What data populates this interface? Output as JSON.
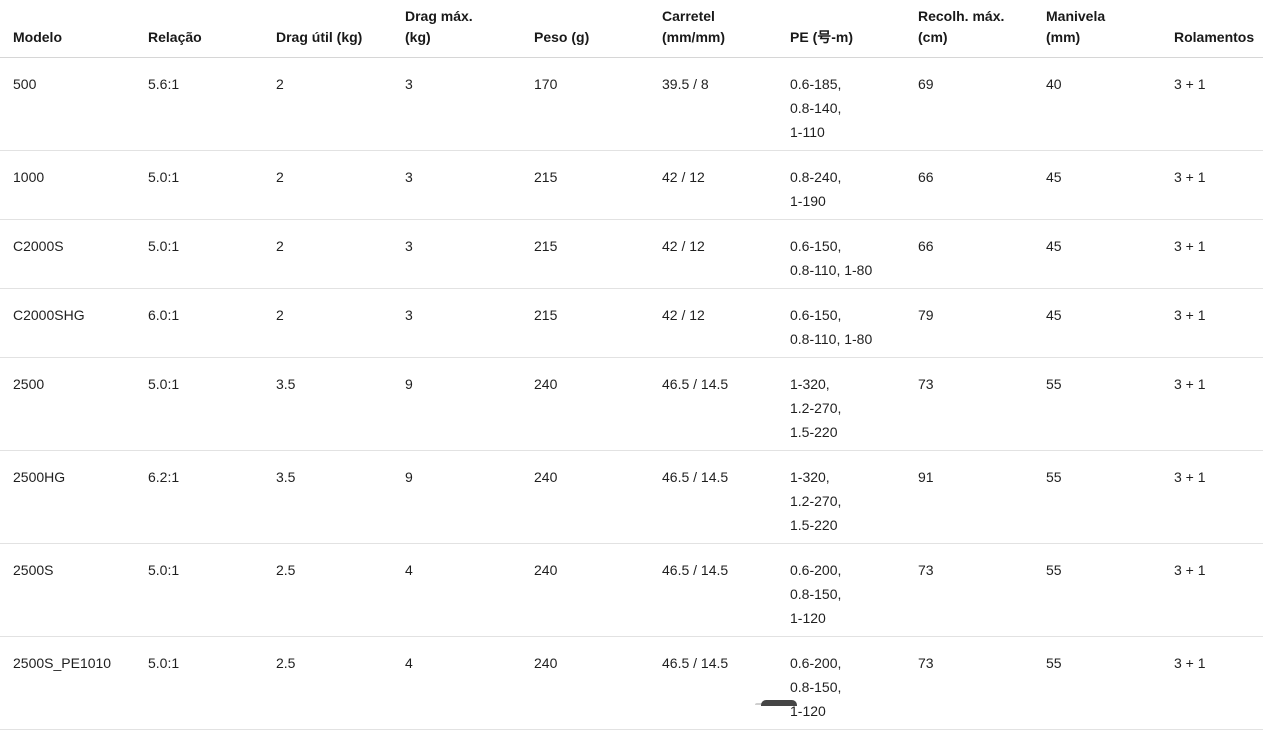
{
  "colors": {
    "background": "#ffffff",
    "text": "#1f1f1f",
    "header_text": "#191919",
    "row_border": "#e2e2e2",
    "header_border": "#d6d6d6"
  },
  "table": {
    "columns": [
      {
        "label": "Modelo"
      },
      {
        "label": "Relação"
      },
      {
        "label": "Drag útil (kg)"
      },
      {
        "label": "Drag máx.\n(kg)"
      },
      {
        "label": "Peso (g)"
      },
      {
        "label": "Carretel\n(mm/mm)"
      },
      {
        "label": "PE (号-m)"
      },
      {
        "label": "Recolh. máx.\n(cm)"
      },
      {
        "label": "Manivela\n(mm)"
      },
      {
        "label": "Rolamentos"
      }
    ],
    "rows": [
      [
        "500",
        "5.6:1",
        "2",
        "3",
        "170",
        "39.5 / 8",
        "0.6-185,\n0.8-140,\n1-110",
        "69",
        "40",
        "3 + 1"
      ],
      [
        "1000",
        "5.0:1",
        "2",
        "3",
        "215",
        "42 / 12",
        "0.8-240,\n1-190",
        "66",
        "45",
        "3 + 1"
      ],
      [
        "C2000S",
        "5.0:1",
        "2",
        "3",
        "215",
        "42 / 12",
        "0.6-150,\n0.8-110, 1-80",
        "66",
        "45",
        "3 + 1"
      ],
      [
        "C2000SHG",
        "6.0:1",
        "2",
        "3",
        "215",
        "42 / 12",
        "0.6-150,\n0.8-110, 1-80",
        "79",
        "45",
        "3 + 1"
      ],
      [
        "2500",
        "5.0:1",
        "3.5",
        "9",
        "240",
        "46.5 / 14.5",
        "1-320,\n1.2-270,\n1.5-220",
        "73",
        "55",
        "3 + 1"
      ],
      [
        "2500HG",
        "6.2:1",
        "3.5",
        "9",
        "240",
        "46.5 / 14.5",
        "1-320,\n1.2-270,\n1.5-220",
        "91",
        "55",
        "3 + 1"
      ],
      [
        "2500S",
        "5.0:1",
        "2.5",
        "4",
        "240",
        "46.5 / 14.5",
        "0.6-200,\n0.8-150,\n1-120",
        "73",
        "55",
        "3 + 1"
      ],
      [
        "2500S_PE1010",
        "5.0:1",
        "2.5",
        "4",
        "240",
        "46.5 / 14.5",
        "0.6-200,\n0.8-150,\n1-120",
        "73",
        "55",
        "3 + 1"
      ]
    ]
  }
}
